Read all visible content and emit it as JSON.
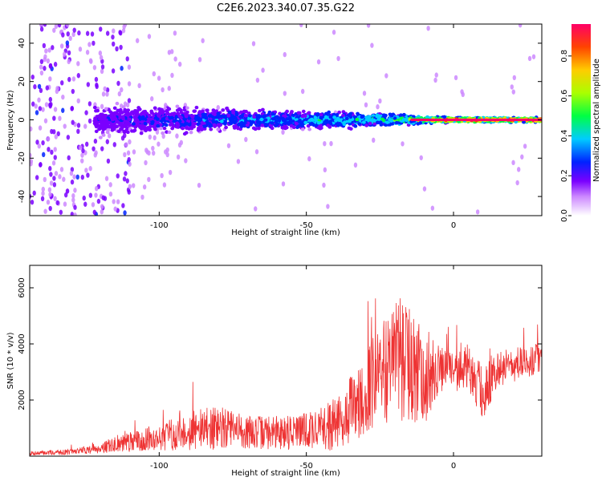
{
  "title": "C2E6.2023.340.07.35.G22",
  "chart_data": [
    {
      "type": "heatmap",
      "xlabel": "Height of straight line (km)",
      "ylabel": "Frequency (Hz)",
      "xlim": [
        -144,
        30
      ],
      "ylim": [
        -50,
        50
      ],
      "xticks": [
        -100,
        -50,
        0
      ],
      "yticks": [
        -40,
        -20,
        0,
        20,
        40
      ],
      "colorbar": {
        "label": "Normalized spectral amplitude",
        "range": [
          0,
          0.96
        ],
        "ticks": [
          "0.0",
          "0.2",
          "0.4",
          "0.6",
          "0.8"
        ],
        "colors": [
          "#ffffff",
          "#cc88ff",
          "#7a00ff",
          "#0022ff",
          "#00ccff",
          "#00ff44",
          "#aaff00",
          "#ffcc00",
          "#ff4400",
          "#ff0066"
        ]
      },
      "band_spread_hz": [
        {
          "x": -144,
          "spread": 50,
          "amp": 0.12
        },
        {
          "x": -120,
          "spread": 10,
          "amp": 0.22
        },
        {
          "x": -90,
          "spread": 8,
          "amp": 0.3
        },
        {
          "x": -60,
          "spread": 6,
          "amp": 0.38
        },
        {
          "x": -30,
          "spread": 5,
          "amp": 0.45
        },
        {
          "x": -15,
          "spread": 3,
          "amp": 0.55
        },
        {
          "x": 0,
          "spread": 1.5,
          "amp": 0.9
        },
        {
          "x": 30,
          "spread": 1.5,
          "amp": 0.92
        }
      ]
    },
    {
      "type": "line",
      "xlabel": "Height of straight line (km)",
      "ylabel": "SNR (10 * v/v)",
      "xlim": [
        -144,
        30
      ],
      "ylim": [
        0,
        6800
      ],
      "xticks": [
        -100,
        -50,
        0
      ],
      "yticks": [
        2000,
        4000,
        6000
      ],
      "series": [
        {
          "color": "#ee3333",
          "x": [
            -144,
            -130,
            -120,
            -110,
            -100,
            -90,
            -80,
            -70,
            -60,
            -50,
            -40,
            -30,
            -25,
            -20,
            -15,
            -10,
            -5,
            0,
            5,
            10,
            15,
            20,
            25,
            30
          ],
          "y": [
            100,
            150,
            300,
            500,
            650,
            900,
            1000,
            850,
            850,
            900,
            1100,
            2200,
            3000,
            3300,
            3300,
            2900,
            3100,
            3000,
            3200,
            2200,
            3200,
            3200,
            3400,
            3500
          ],
          "spread": [
            80,
            100,
            200,
            350,
            450,
            700,
            800,
            600,
            600,
            700,
            900,
            1500,
            1900,
            2200,
            2000,
            1900,
            900,
            700,
            800,
            1000,
            700,
            600,
            600,
            500
          ]
        }
      ]
    }
  ]
}
